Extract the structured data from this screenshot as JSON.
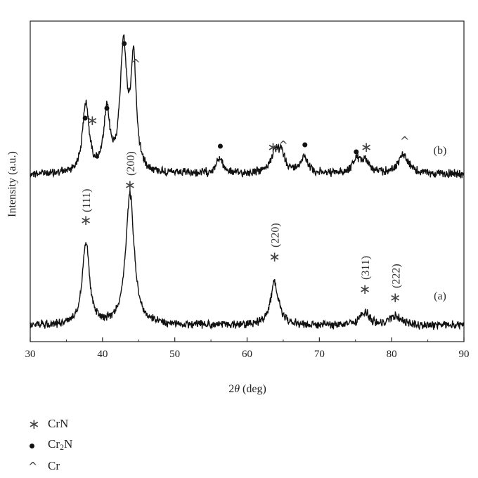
{
  "chart_data": {
    "type": "line",
    "xlabel_symbol": "2θ",
    "xlabel_unit": " (deg)",
    "ylabel": "Intensity (a.u.)",
    "xlim": [
      30,
      90
    ],
    "xticks": [
      30,
      40,
      50,
      60,
      70,
      80,
      90
    ],
    "grid": false,
    "series": [
      {
        "name": "(b)",
        "baseline": 0.0,
        "peaks": [
          {
            "x": 37.7,
            "height": 0.55,
            "width": 0.55
          },
          {
            "x": 40.6,
            "height": 0.47,
            "width": 0.5
          },
          {
            "x": 42.9,
            "height": 1.0,
            "width": 0.55
          },
          {
            "x": 44.3,
            "height": 0.87,
            "width": 0.45
          },
          {
            "x": 56.2,
            "height": 0.12,
            "width": 0.6
          },
          {
            "x": 63.9,
            "height": 0.16,
            "width": 0.8
          },
          {
            "x": 64.8,
            "height": 0.12,
            "width": 0.6
          },
          {
            "x": 67.9,
            "height": 0.14,
            "width": 0.6
          },
          {
            "x": 75.1,
            "height": 0.1,
            "width": 0.7
          },
          {
            "x": 76.3,
            "height": 0.1,
            "width": 0.7
          },
          {
            "x": 81.6,
            "height": 0.15,
            "width": 0.9
          }
        ]
      },
      {
        "name": "(a)",
        "baseline": 0.0,
        "peaks": [
          {
            "x": 37.7,
            "height": 0.62,
            "width": 0.6
          },
          {
            "x": 43.8,
            "height": 1.0,
            "width": 0.7
          },
          {
            "x": 63.8,
            "height": 0.32,
            "width": 0.7
          },
          {
            "x": 76.3,
            "height": 0.1,
            "width": 0.7
          },
          {
            "x": 80.5,
            "height": 0.07,
            "width": 0.9
          }
        ]
      }
    ],
    "annotations_b": [
      {
        "x": 37.6,
        "marker": "dot"
      },
      {
        "x": 38.6,
        "marker": "star"
      },
      {
        "x": 40.6,
        "marker": "dot"
      },
      {
        "x": 43.0,
        "marker": "dot"
      },
      {
        "x": 44.6,
        "marker": "caret"
      },
      {
        "x": 56.3,
        "marker": "dot"
      },
      {
        "x": 63.6,
        "marker": "star"
      },
      {
        "x": 65.0,
        "marker": "caret"
      },
      {
        "x": 68.0,
        "marker": "dot"
      },
      {
        "x": 75.1,
        "marker": "dot"
      },
      {
        "x": 76.5,
        "marker": "star"
      },
      {
        "x": 81.8,
        "marker": "caret"
      }
    ],
    "annotations_a": [
      {
        "x": 37.7,
        "hkl": "(111)"
      },
      {
        "x": 43.8,
        "hkl": "(200)"
      },
      {
        "x": 63.8,
        "hkl": "(220)"
      },
      {
        "x": 76.3,
        "hkl": "(311)"
      },
      {
        "x": 80.5,
        "hkl": "(222)"
      }
    ],
    "series_labels": [
      "(b)",
      "(a)"
    ]
  },
  "legend": {
    "items": [
      {
        "symbol": "star",
        "label": "CrN"
      },
      {
        "symbol": "dot",
        "label_main": "Cr",
        "label_sub": "2",
        "label_tail": "N"
      },
      {
        "symbol": "caret",
        "label": "Cr"
      }
    ]
  },
  "glyphs": {
    "star": "∗",
    "caret": "^"
  }
}
